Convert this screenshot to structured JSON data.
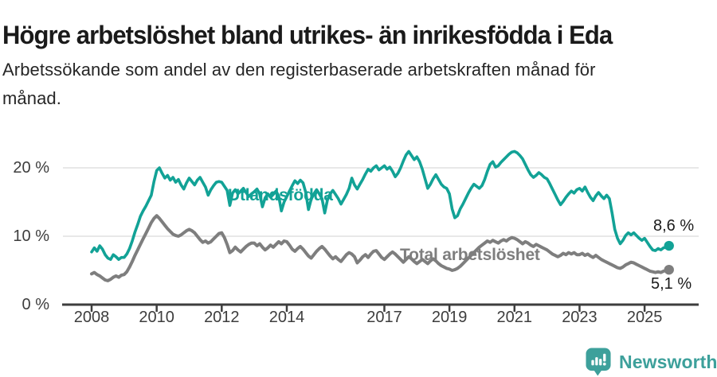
{
  "header": {
    "title": "Högre arbetslöshet bland utrikes- än inrikesfödda i Eda",
    "subtitle": "Arbetssökande som andel av den registerbaserade arbetskraften månad för\nmånad."
  },
  "chart_data": {
    "type": "line",
    "frequency": "monthly",
    "x_start": "2008-01",
    "x_end": "2025-10",
    "grid": "horizontal",
    "legend_position": "inline-labels",
    "y_axis": {
      "ylim": [
        0,
        24
      ],
      "ticks": [
        {
          "label": "0 %",
          "value": 0
        },
        {
          "label": "10 %",
          "value": 10
        },
        {
          "label": "20 %",
          "value": 20
        }
      ]
    },
    "x_ticks": [
      {
        "label": "2008",
        "year": 2008
      },
      {
        "label": "2010",
        "year": 2010
      },
      {
        "label": "2012",
        "year": 2012
      },
      {
        "label": "2014",
        "year": 2014
      },
      {
        "label": "2017",
        "year": 2017
      },
      {
        "label": "2019",
        "year": 2019
      },
      {
        "label": "2021",
        "year": 2021
      },
      {
        "label": "2023",
        "year": 2023
      },
      {
        "label": "2025",
        "year": 2025
      }
    ],
    "series": [
      {
        "name": "Utlandsfödda",
        "color": "#12a296",
        "end_label": "8,6 %",
        "end_value": 8.6,
        "values": [
          7.7,
          8.3,
          7.8,
          8.6,
          8.1,
          7.3,
          6.8,
          6.6,
          7.3,
          7.0,
          6.6,
          6.9,
          6.9,
          7.4,
          8.2,
          9.3,
          10.6,
          11.7,
          12.9,
          13.7,
          14.4,
          15.2,
          16.0,
          18.0,
          19.6,
          20.0,
          19.2,
          18.5,
          18.9,
          18.2,
          18.6,
          17.9,
          18.3,
          17.5,
          16.9,
          17.8,
          18.5,
          18.0,
          17.5,
          18.2,
          18.6,
          17.9,
          17.2,
          16.0,
          16.8,
          17.4,
          17.9,
          18.0,
          17.9,
          17.3,
          16.7,
          14.5,
          16.3,
          16.8,
          16.2,
          16.6,
          17.0,
          16.4,
          15.8,
          16.2,
          16.5,
          16.9,
          16.2,
          14.3,
          15.6,
          16.2,
          15.7,
          16.1,
          16.6,
          15.9,
          13.7,
          15.0,
          15.8,
          16.6,
          17.4,
          18.1,
          17.7,
          18.2,
          17.8,
          16.4,
          13.9,
          15.4,
          16.2,
          16.8,
          16.2,
          15.5,
          13.4,
          15.3,
          16.2,
          16.7,
          16.1,
          15.5,
          14.7,
          15.4,
          16.1,
          17.0,
          18.5,
          17.5,
          16.9,
          17.6,
          18.3,
          19.1,
          19.8,
          19.5,
          20.0,
          20.3,
          19.7,
          20.0,
          20.3,
          19.8,
          20.1,
          19.5,
          18.7,
          19.2,
          20.0,
          21.0,
          21.9,
          22.4,
          21.8,
          21.2,
          21.6,
          20.9,
          19.8,
          18.4,
          17.0,
          17.6,
          18.4,
          19.0,
          18.3,
          17.6,
          17.2,
          17.0,
          16.2,
          14.0,
          12.7,
          13.0,
          14.0,
          14.7,
          15.5,
          16.3,
          17.0,
          17.6,
          17.3,
          17.0,
          17.4,
          18.3,
          19.5,
          20.5,
          20.9,
          20.1,
          20.3,
          20.8,
          21.2,
          21.6,
          22.0,
          22.3,
          22.4,
          22.2,
          21.8,
          21.3,
          20.5,
          19.7,
          19.0,
          18.6,
          18.9,
          19.3,
          19.0,
          18.6,
          18.4,
          17.7,
          16.9,
          16.1,
          15.3,
          14.6,
          15.1,
          15.7,
          16.2,
          16.6,
          16.3,
          16.8,
          17.0,
          16.6,
          17.2,
          16.4,
          15.7,
          15.2,
          15.9,
          16.4,
          15.9,
          15.5,
          16.0,
          15.5,
          13.4,
          11.0,
          9.7,
          8.9,
          9.4,
          10.1,
          10.5,
          10.2,
          10.5,
          10.1,
          9.7,
          9.4,
          9.7,
          9.1,
          8.5,
          8.0,
          7.9,
          8.2,
          8.0,
          8.3,
          8.4,
          8.6
        ]
      },
      {
        "name": "Total arbetslöshet",
        "color": "#7e7e7e",
        "end_label": "5,1 %",
        "end_value": 5.1,
        "values": [
          4.5,
          4.7,
          4.4,
          4.2,
          3.9,
          3.6,
          3.5,
          3.7,
          4.0,
          4.2,
          4.0,
          4.3,
          4.4,
          4.8,
          5.5,
          6.3,
          7.2,
          8.0,
          8.8,
          9.6,
          10.4,
          11.2,
          12.0,
          12.6,
          13.0,
          12.6,
          12.1,
          11.6,
          11.1,
          10.7,
          10.3,
          10.1,
          10.0,
          10.2,
          10.5,
          10.8,
          11.0,
          10.8,
          10.5,
          10.0,
          9.5,
          9.1,
          9.3,
          9.0,
          9.2,
          9.6,
          10.0,
          10.4,
          10.5,
          9.8,
          8.8,
          7.6,
          7.9,
          8.4,
          8.0,
          7.7,
          8.1,
          8.5,
          8.8,
          9.0,
          9.0,
          8.6,
          8.9,
          8.4,
          8.0,
          8.3,
          8.7,
          8.4,
          8.8,
          9.2,
          8.9,
          9.3,
          9.2,
          8.7,
          8.1,
          7.8,
          8.2,
          8.5,
          8.1,
          7.6,
          7.1,
          6.8,
          7.3,
          7.8,
          8.2,
          8.5,
          8.1,
          7.6,
          7.1,
          6.7,
          7.0,
          6.6,
          6.3,
          6.8,
          7.3,
          7.6,
          7.4,
          7.0,
          6.1,
          6.5,
          7.0,
          7.3,
          6.9,
          7.4,
          7.8,
          7.9,
          7.4,
          6.9,
          6.6,
          7.0,
          7.4,
          7.7,
          7.4,
          7.0,
          6.6,
          6.2,
          6.6,
          7.0,
          6.7,
          6.3,
          6.0,
          6.3,
          6.6,
          6.3,
          6.0,
          6.4,
          6.7,
          6.4,
          6.0,
          5.7,
          5.5,
          5.3,
          5.2,
          5.0,
          5.1,
          5.3,
          5.6,
          6.0,
          6.4,
          6.8,
          7.2,
          7.6,
          8.0,
          8.4,
          8.7,
          9.0,
          9.3,
          9.1,
          9.4,
          9.2,
          9.0,
          9.3,
          9.5,
          9.3,
          9.6,
          9.8,
          9.7,
          9.5,
          9.2,
          8.9,
          9.2,
          9.0,
          8.7,
          8.5,
          8.8,
          8.6,
          8.4,
          8.2,
          8.0,
          7.7,
          7.4,
          7.2,
          7.0,
          7.2,
          7.5,
          7.3,
          7.6,
          7.4,
          7.6,
          7.3,
          7.3,
          7.5,
          7.2,
          7.4,
          7.1,
          6.9,
          7.2,
          6.9,
          6.6,
          6.4,
          6.2,
          6.0,
          5.8,
          5.6,
          5.4,
          5.3,
          5.5,
          5.8,
          6.0,
          6.2,
          6.1,
          5.9,
          5.7,
          5.5,
          5.3,
          5.1,
          4.9,
          4.8,
          4.7,
          4.8,
          4.7,
          4.9,
          5.0,
          5.1
        ]
      }
    ],
    "style": {
      "grid_color": "#e1e1e1",
      "axis_color": "#3d3d3d",
      "tick_label_color": "#3d3d3d",
      "end_label_color": "#1a1a1a"
    }
  },
  "footer": {
    "brand": "Newsworthy",
    "brand_color": "#3da09b"
  }
}
